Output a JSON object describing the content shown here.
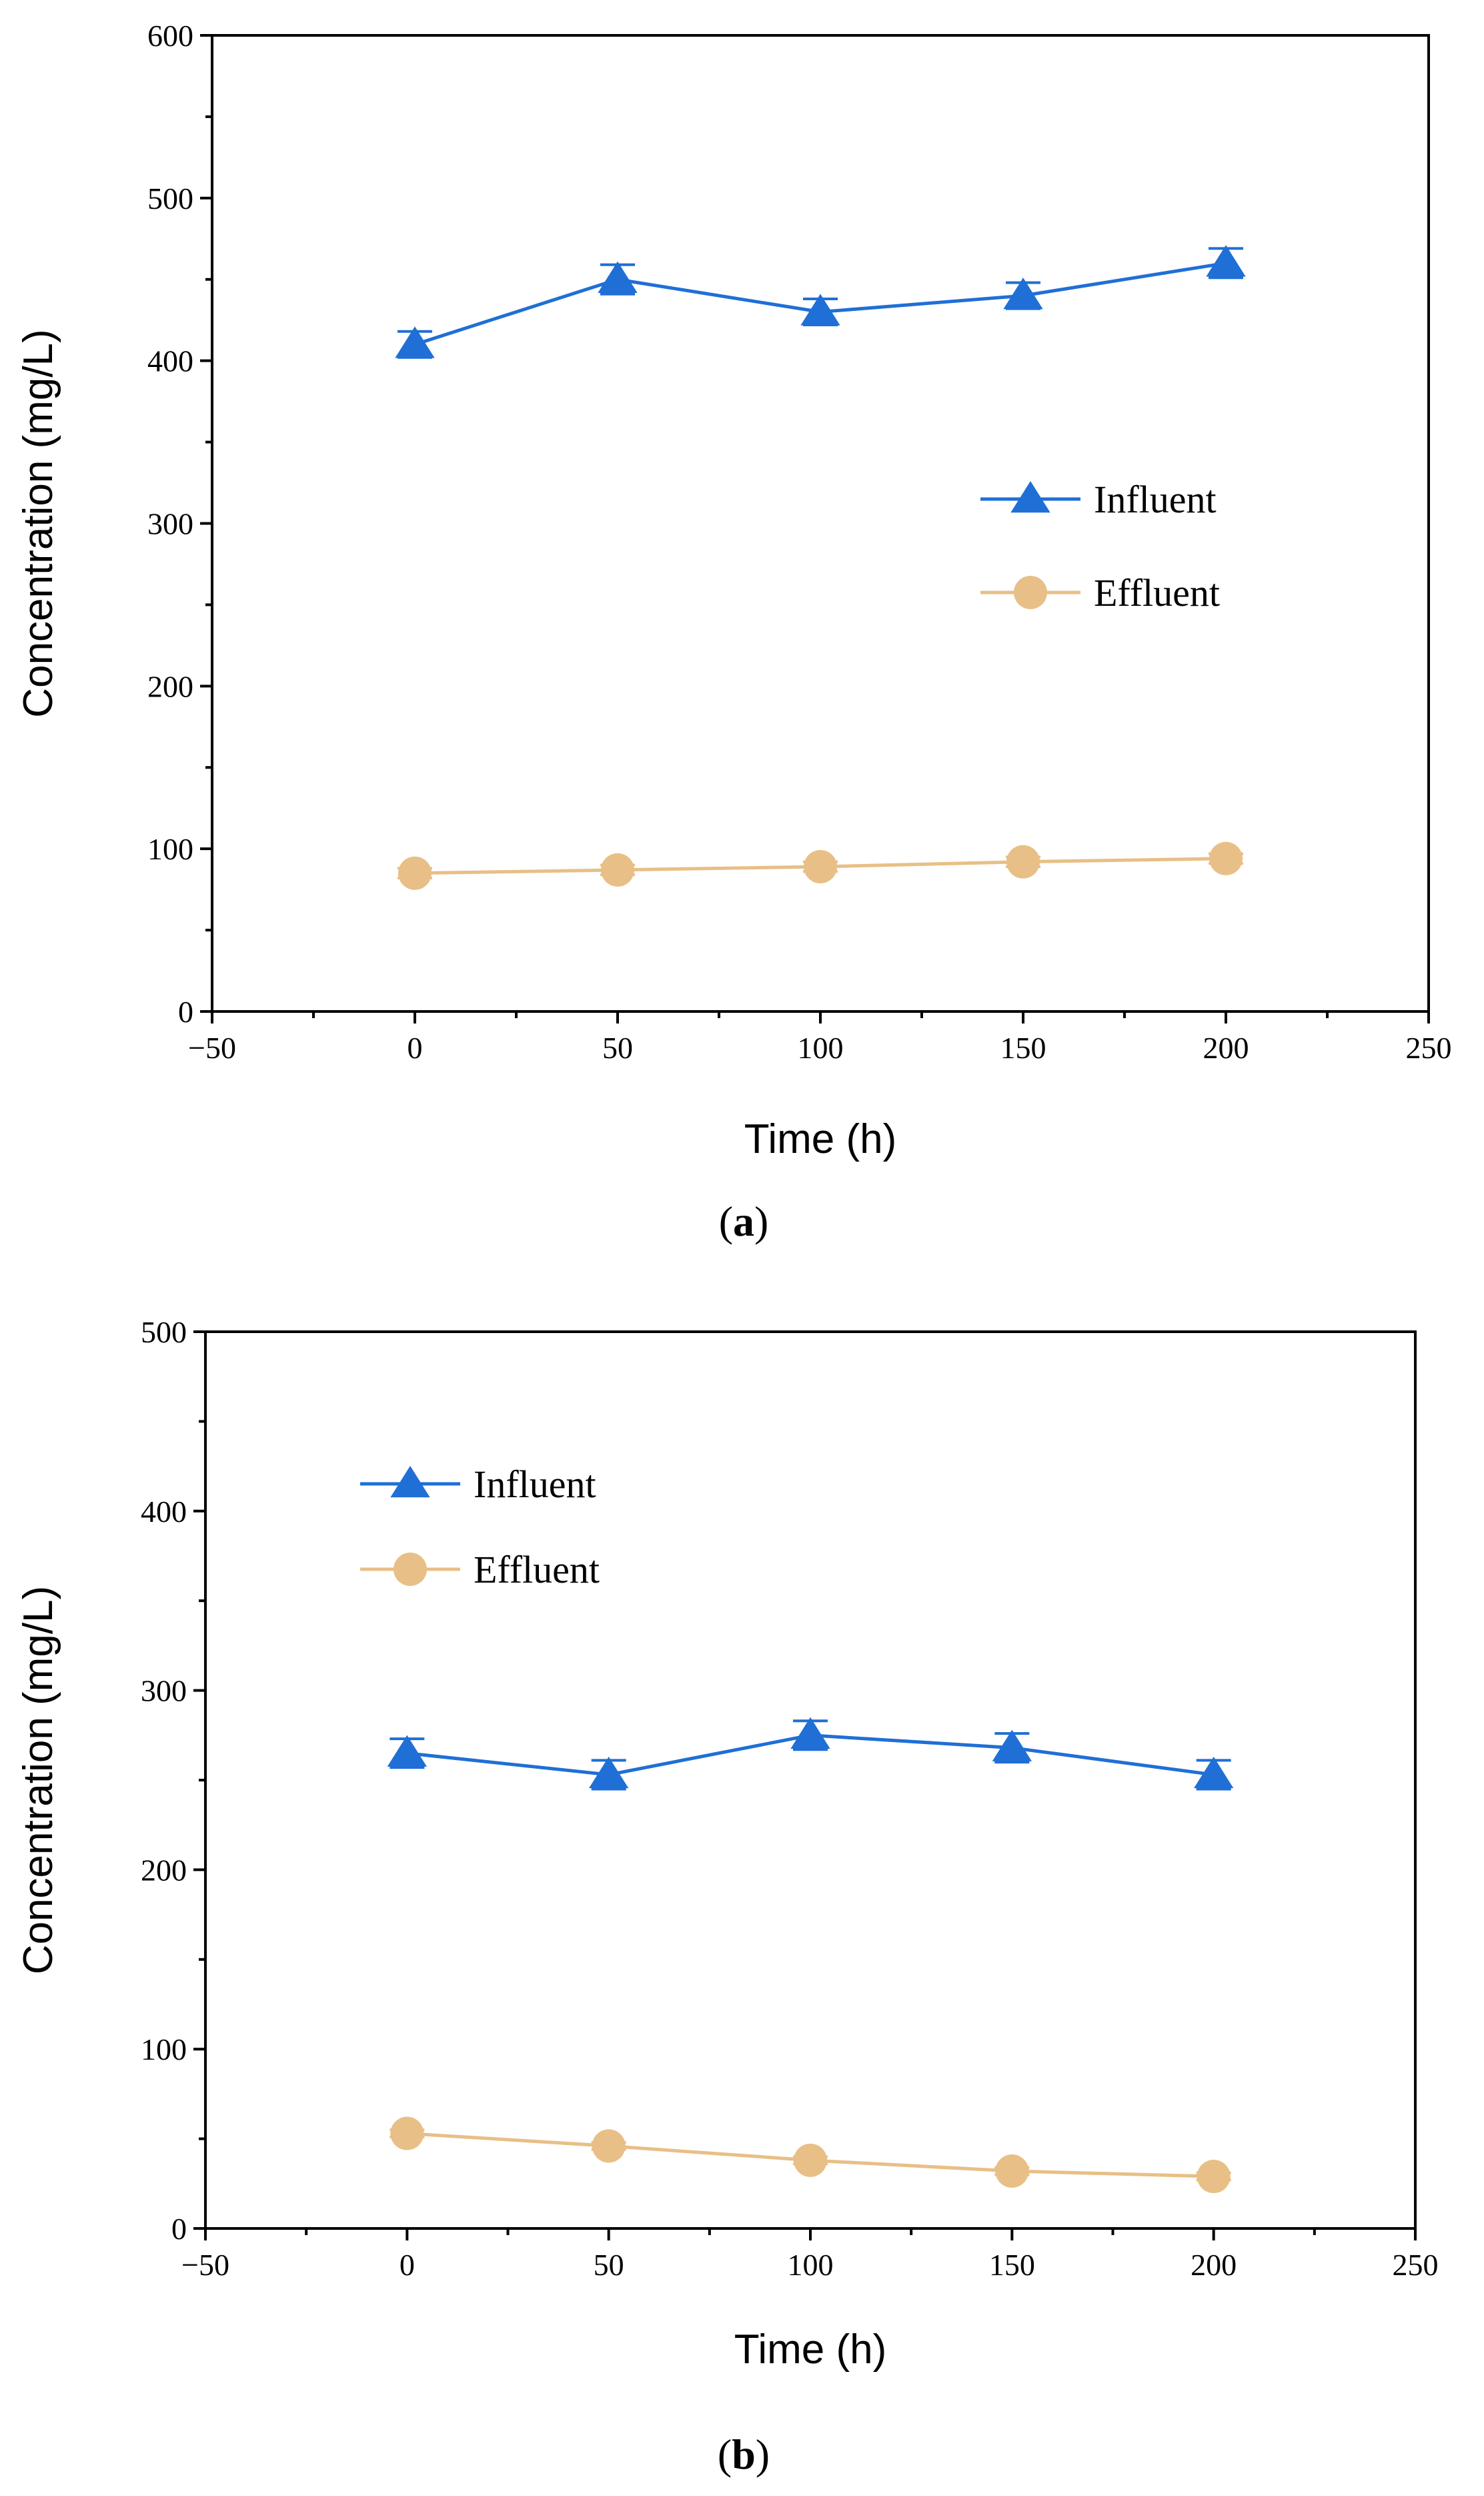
{
  "chart_data": [
    {
      "type": "line",
      "panel": "a",
      "xlabel": "Time (h)",
      "ylabel": "Concentration (mg/L)",
      "xlim": [
        -50,
        250
      ],
      "ylim": [
        0,
        600
      ],
      "xticks": [
        -50,
        0,
        50,
        100,
        150,
        200,
        250
      ],
      "yticks": [
        0,
        100,
        200,
        300,
        400,
        500,
        600
      ],
      "x": [
        0,
        50,
        100,
        150,
        200
      ],
      "series": [
        {
          "name": "Influent",
          "marker": "triangle",
          "color": "#1f6fd6",
          "values": [
            410,
            450,
            430,
            440,
            460
          ],
          "errors": [
            8,
            9,
            8,
            8,
            9
          ]
        },
        {
          "name": "Effluent",
          "marker": "circle",
          "color": "#e8bf86",
          "values": [
            85,
            87,
            89,
            92,
            94
          ],
          "errors": [
            3,
            3,
            3,
            3,
            3
          ]
        }
      ],
      "legend": "center-right"
    },
    {
      "type": "line",
      "panel": "b",
      "xlabel": "Time (h)",
      "ylabel": "Concentration (mg/L)",
      "xlim": [
        -50,
        250
      ],
      "ylim": [
        0,
        500
      ],
      "xticks": [
        -50,
        0,
        50,
        100,
        150,
        200,
        250
      ],
      "yticks": [
        0,
        100,
        200,
        300,
        400,
        500
      ],
      "x": [
        0,
        50,
        100,
        150,
        200
      ],
      "series": [
        {
          "name": "Influent",
          "marker": "triangle",
          "color": "#1f6fd6",
          "values": [
            265,
            253,
            275,
            268,
            253
          ],
          "errors": [
            8,
            8,
            8,
            8,
            8
          ]
        },
        {
          "name": "Effluent",
          "marker": "circle",
          "color": "#e8bf86",
          "values": [
            53,
            46,
            38,
            32,
            29
          ],
          "errors": [
            2,
            2,
            2,
            2,
            2
          ]
        }
      ],
      "legend": "top-left"
    }
  ],
  "panel_labels": {
    "a": {
      "open": "(",
      "letter": "a",
      "close": ")"
    },
    "b": {
      "open": "(",
      "letter": "b",
      "close": ")"
    }
  }
}
